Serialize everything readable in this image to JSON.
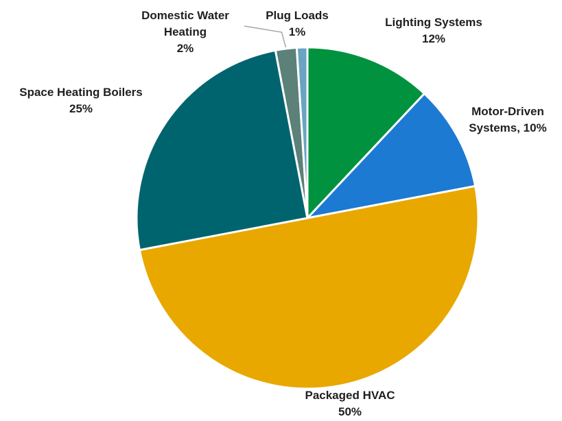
{
  "chart_data": {
    "type": "pie",
    "title": "",
    "start_angle_deg": 0,
    "direction": "clockwise",
    "slices": [
      {
        "label_lines": [
          "Lighting Systems",
          "12%"
        ],
        "value": 12,
        "color": "#00923f"
      },
      {
        "label_lines": [
          "Motor-Driven",
          "Systems, 10%"
        ],
        "value": 10,
        "color": "#1c7ad2"
      },
      {
        "label_lines": [
          "Packaged HVAC",
          "50%"
        ],
        "value": 50,
        "color": "#e8a800"
      },
      {
        "label_lines": [
          "Space Heating Boilers",
          "25%"
        ],
        "value": 25,
        "color": "#00646f"
      },
      {
        "label_lines": [
          "Domestic Water",
          "Heating",
          "2%"
        ],
        "value": 2,
        "color": "#5b8178"
      },
      {
        "label_lines": [
          "Plug Loads",
          "1%"
        ],
        "value": 1,
        "color": "#6aa3c4"
      }
    ],
    "legend": "none",
    "slice_border_color": "#ffffff",
    "leader_line_color": "#a6a6a6"
  }
}
